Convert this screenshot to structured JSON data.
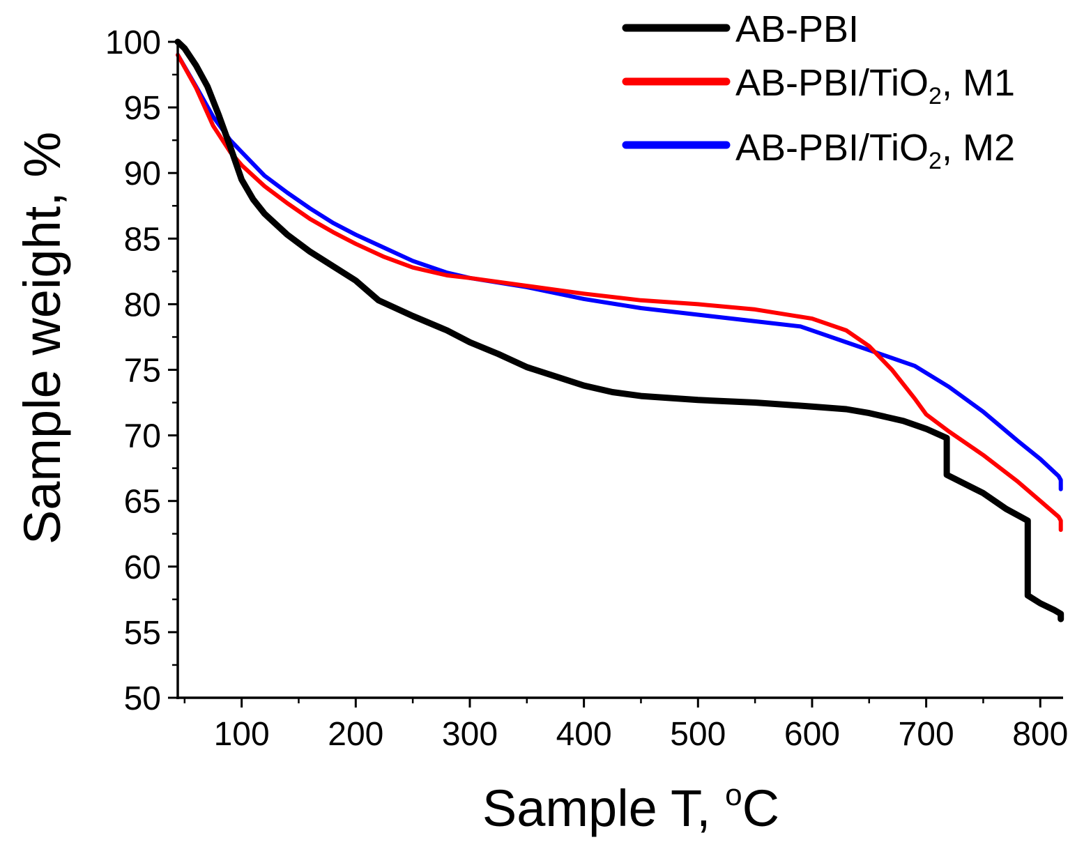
{
  "chart_data": {
    "type": "line",
    "title": "",
    "xlabel": "Sample T, ",
    "xlabel_superscript": "o",
    "xlabel_unit": "C",
    "ylabel": "Sample weight, %",
    "xlim": [
      44,
      820
    ],
    "ylim": [
      50,
      100
    ],
    "xticks": [
      100,
      200,
      300,
      400,
      500,
      600,
      700,
      800
    ],
    "yticks": [
      50,
      55,
      60,
      65,
      70,
      75,
      80,
      85,
      90,
      95,
      100
    ],
    "grid": false,
    "legend_position": "top-right",
    "series": [
      {
        "name": "AB-PBI",
        "legend_parts": [
          "AB-PBI"
        ],
        "color": "#000000",
        "points": [
          [
            44,
            100
          ],
          [
            50,
            99.5
          ],
          [
            60,
            98.2
          ],
          [
            70,
            96.6
          ],
          [
            80,
            94.4
          ],
          [
            90,
            92
          ],
          [
            100,
            89.5
          ],
          [
            110,
            88
          ],
          [
            120,
            86.9
          ],
          [
            140,
            85.3
          ],
          [
            160,
            84
          ],
          [
            180,
            82.9
          ],
          [
            200,
            81.8
          ],
          [
            220,
            80.3
          ],
          [
            250,
            79.1
          ],
          [
            280,
            78
          ],
          [
            300,
            77.1
          ],
          [
            325,
            76.2
          ],
          [
            350,
            75.2
          ],
          [
            375,
            74.5
          ],
          [
            400,
            73.8
          ],
          [
            425,
            73.3
          ],
          [
            450,
            73
          ],
          [
            500,
            72.7
          ],
          [
            550,
            72.5
          ],
          [
            600,
            72.2
          ],
          [
            630,
            72
          ],
          [
            650,
            71.7
          ],
          [
            680,
            71.1
          ],
          [
            700,
            70.5
          ],
          [
            718,
            69.8
          ],
          [
            718,
            67
          ],
          [
            750,
            65.6
          ],
          [
            770,
            64.4
          ],
          [
            789,
            63.5
          ],
          [
            789,
            57.8
          ],
          [
            800,
            57.2
          ],
          [
            812,
            56.7
          ],
          [
            818,
            56.4
          ],
          [
            818,
            56
          ]
        ]
      },
      {
        "name": "AB-PBI/TiO2, M1",
        "legend_parts": [
          "AB-PBI/TiO",
          "2",
          ", M1"
        ],
        "color": "#ff0000",
        "points": [
          [
            44,
            99
          ],
          [
            60,
            96.5
          ],
          [
            75,
            93.6
          ],
          [
            90,
            91.6
          ],
          [
            100,
            90.6
          ],
          [
            120,
            89
          ],
          [
            140,
            87.7
          ],
          [
            160,
            86.5
          ],
          [
            180,
            85.5
          ],
          [
            200,
            84.6
          ],
          [
            225,
            83.6
          ],
          [
            250,
            82.8
          ],
          [
            280,
            82.2
          ],
          [
            300,
            82
          ],
          [
            350,
            81.4
          ],
          [
            400,
            80.8
          ],
          [
            450,
            80.3
          ],
          [
            500,
            80
          ],
          [
            550,
            79.6
          ],
          [
            600,
            78.9
          ],
          [
            630,
            78
          ],
          [
            650,
            76.8
          ],
          [
            670,
            75
          ],
          [
            690,
            72.8
          ],
          [
            700,
            71.6
          ],
          [
            720,
            70.3
          ],
          [
            750,
            68.5
          ],
          [
            780,
            66.5
          ],
          [
            800,
            65
          ],
          [
            816,
            63.8
          ],
          [
            818,
            63.5
          ],
          [
            818,
            62.8
          ]
        ]
      },
      {
        "name": "AB-PBI/TiO2, M2",
        "legend_parts": [
          "AB-PBI/TiO",
          "2",
          ", M2"
        ],
        "color": "#0000ff",
        "points": [
          [
            44,
            99
          ],
          [
            60,
            96.6
          ],
          [
            75,
            94.3
          ],
          [
            90,
            92.5
          ],
          [
            100,
            91.6
          ],
          [
            120,
            89.8
          ],
          [
            140,
            88.5
          ],
          [
            160,
            87.3
          ],
          [
            180,
            86.2
          ],
          [
            200,
            85.3
          ],
          [
            225,
            84.3
          ],
          [
            250,
            83.3
          ],
          [
            280,
            82.4
          ],
          [
            300,
            82
          ],
          [
            350,
            81.3
          ],
          [
            400,
            80.4
          ],
          [
            450,
            79.7
          ],
          [
            500,
            79.2
          ],
          [
            550,
            78.7
          ],
          [
            590,
            78.3
          ],
          [
            610,
            77.7
          ],
          [
            630,
            77.1
          ],
          [
            660,
            76.2
          ],
          [
            690,
            75.3
          ],
          [
            720,
            73.7
          ],
          [
            750,
            71.8
          ],
          [
            780,
            69.6
          ],
          [
            800,
            68.2
          ],
          [
            816,
            66.9
          ],
          [
            818,
            66.6
          ],
          [
            818,
            65.9
          ]
        ]
      }
    ]
  }
}
